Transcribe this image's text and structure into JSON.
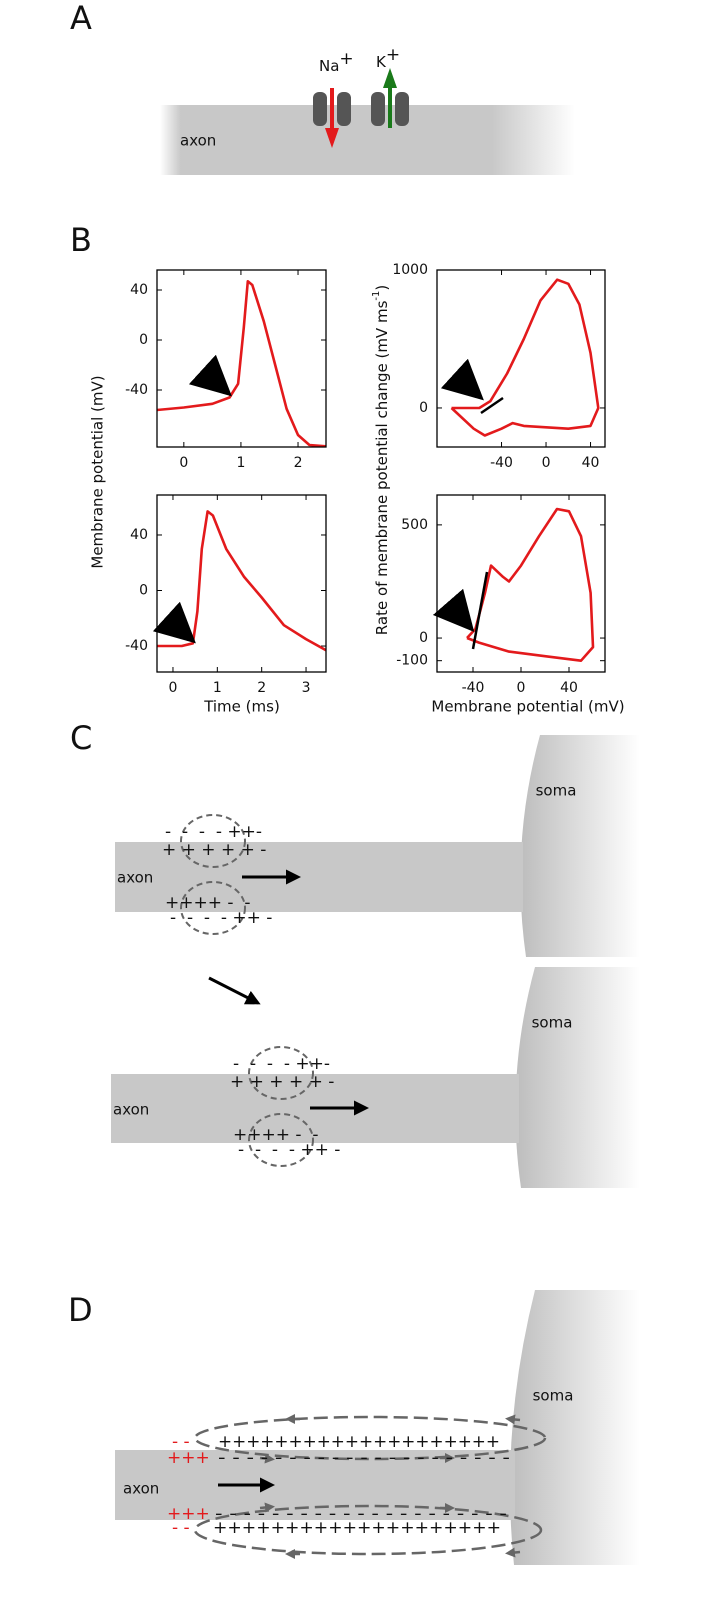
{
  "panels": {
    "a": {
      "label": "A",
      "axon": "axon",
      "na": "Na",
      "na_sup": "+",
      "k": "K",
      "k_sup": "+"
    },
    "b": {
      "label": "B",
      "y_label_left": "Membrane potential (mV)",
      "y_label_right": "Rate of membrane potential change (mV ms",
      "y_label_right_sup": "-1",
      "y_label_right_end": ")",
      "x_label_left": "Time (ms)",
      "x_label_right": "Membrane potential (mV)",
      "charts": [
        {
          "type": "line",
          "color": "#e31a1c",
          "x": [
            -0.47,
            0,
            0.5,
            0.8,
            0.95,
            1.05,
            1.12,
            1.2,
            1.4,
            1.6,
            1.8,
            2.0,
            2.2,
            2.49
          ],
          "values": [
            -56,
            -54,
            -51,
            -46,
            -35,
            10,
            47,
            44,
            15,
            -20,
            -55,
            -76,
            -84,
            -85
          ],
          "xlim": [
            -0.47,
            2.49
          ],
          "ylim": [
            -85.6,
            56
          ],
          "xticks": [
            0,
            1,
            2
          ],
          "yticks": [
            -40,
            0,
            40
          ]
        },
        {
          "type": "line",
          "color": "#e31a1c",
          "x": [
            -0.36,
            0.2,
            0.45,
            0.55,
            0.65,
            0.78,
            0.9,
            1.2,
            1.6,
            2.0,
            2.5,
            3.0,
            3.45
          ],
          "values": [
            -40,
            -40,
            -38,
            -15,
            30,
            57,
            54,
            30,
            10,
            -5,
            -25,
            -35,
            -43
          ],
          "xlim": [
            -0.36,
            3.45
          ],
          "ylim": [
            -58.7,
            68.8
          ],
          "xticks": [
            0,
            1,
            2,
            3
          ],
          "yticks": [
            -40,
            0,
            40
          ]
        },
        {
          "type": "line",
          "color": "#e31a1c",
          "x": [
            -85,
            -60,
            -50,
            -35,
            -20,
            -5,
            10,
            20,
            30,
            40,
            47,
            40,
            20,
            -20,
            -30,
            -40,
            -55,
            -65,
            -85
          ],
          "values": [
            0,
            0,
            50,
            250,
            500,
            780,
            930,
            900,
            750,
            400,
            0,
            -130,
            -150,
            -130,
            -110,
            -150,
            -200,
            -150,
            0
          ],
          "xlim": [
            -98,
            53
          ],
          "ylim": [
            -283,
            1000
          ],
          "xticks": [
            -40,
            0,
            40
          ],
          "yticks": [
            0,
            1000
          ]
        },
        {
          "type": "line",
          "color": "#e31a1c",
          "x": [
            -45,
            -35,
            -10,
            20,
            50,
            60,
            58,
            50,
            40,
            30,
            15,
            0,
            -10,
            -15,
            -25,
            -30,
            -38,
            -45
          ],
          "values": [
            0,
            -20,
            -60,
            -80,
            -100,
            -40,
            200,
            450,
            560,
            570,
            450,
            320,
            250,
            270,
            320,
            200,
            40,
            0
          ],
          "xlim": [
            -70,
            70
          ],
          "ylim": [
            -150,
            632
          ],
          "xticks": [
            -40,
            0,
            40
          ],
          "yticks": [
            -100,
            0,
            500
          ]
        }
      ]
    },
    "c": {
      "label": "C",
      "top": {
        "soma": "soma",
        "axon": "axon",
        "charges": [
          "-  -  -  - ++-",
          "+ + + + + -",
          "++++ -  -",
          "-  -  -  - ++ -"
        ]
      },
      "bottom": {
        "soma": "soma",
        "axon": "axon",
        "charges": [
          "-  -  -  - ++-",
          "+ + + + + -",
          "++++ -  -",
          "-  -  -  - ++ -"
        ]
      }
    },
    "d": {
      "label": "D",
      "soma": "soma",
      "axon": "axon",
      "top_red_minus": "- -",
      "top_red_plus": "+++",
      "top_plus": "++++++++++++++++++++",
      "top_minus": "- - - - - - - - - - - - - - - - - - - - -",
      "bottom_red_plus": "+++",
      "bottom_red_minus": "- -",
      "bottom_minus": "- - - - - - - - - - - - - - - - - - - - -",
      "bottom_plus": "++++++++++++++++++++"
    }
  }
}
